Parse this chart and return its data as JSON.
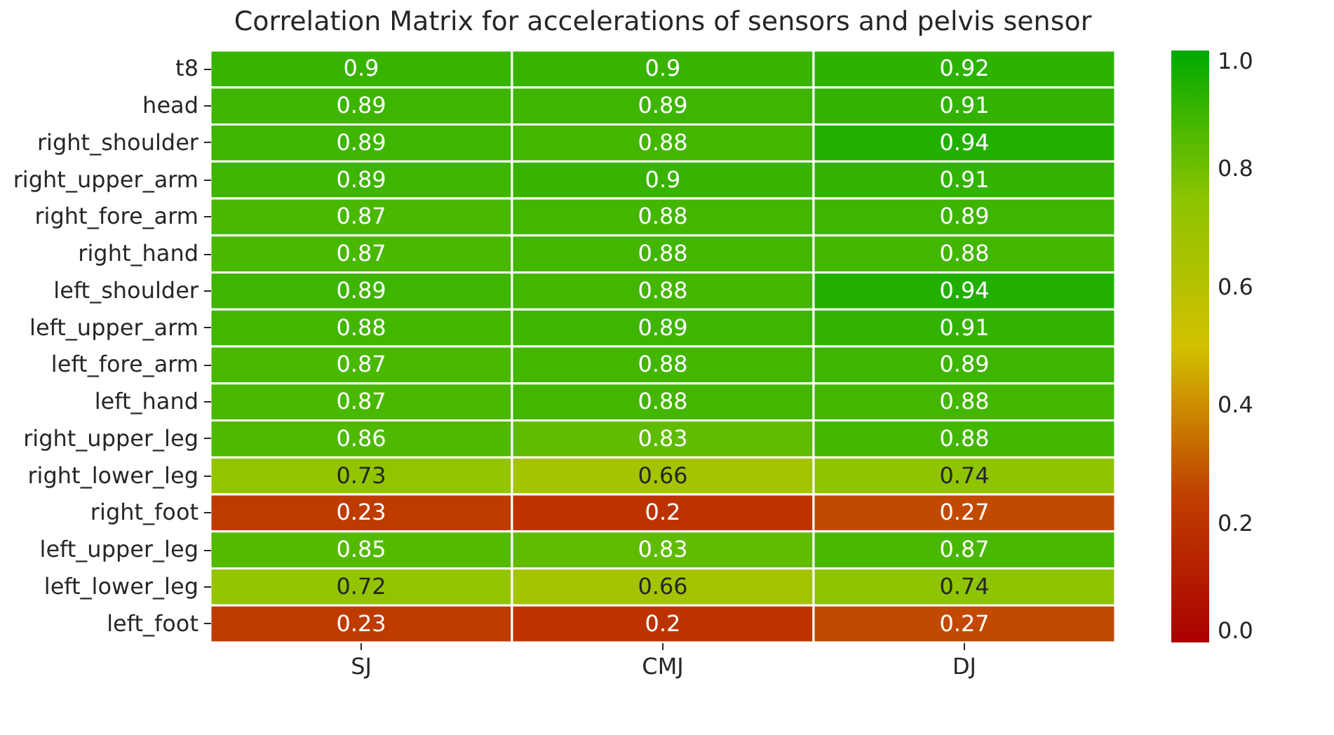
{
  "chart_data": {
    "type": "heatmap",
    "title": "Correlation Matrix for accelerations of sensors and pelvis sensor",
    "categories": [
      "SJ",
      "CMJ",
      "DJ"
    ],
    "y_categories": [
      "t8",
      "head",
      "right_shoulder",
      "right_upper_arm",
      "right_fore_arm",
      "right_hand",
      "left_shoulder",
      "left_upper_arm",
      "left_fore_arm",
      "left_hand",
      "right_upper_leg",
      "right_lower_leg",
      "right_foot",
      "left_upper_leg",
      "left_lower_leg",
      "left_foot"
    ],
    "cells": [
      [
        0.9,
        0.9,
        0.92
      ],
      [
        0.89,
        0.89,
        0.91
      ],
      [
        0.89,
        0.88,
        0.94
      ],
      [
        0.89,
        0.9,
        0.91
      ],
      [
        0.87,
        0.88,
        0.89
      ],
      [
        0.87,
        0.88,
        0.88
      ],
      [
        0.89,
        0.88,
        0.94
      ],
      [
        0.88,
        0.89,
        0.91
      ],
      [
        0.87,
        0.88,
        0.89
      ],
      [
        0.87,
        0.88,
        0.88
      ],
      [
        0.86,
        0.83,
        0.88
      ],
      [
        0.73,
        0.66,
        0.74
      ],
      [
        0.23,
        0.2,
        0.27
      ],
      [
        0.85,
        0.83,
        0.87
      ],
      [
        0.72,
        0.66,
        0.74
      ],
      [
        0.23,
        0.2,
        0.27
      ]
    ],
    "data_labels": true,
    "clim": [
      0,
      1
    ],
    "cticks": [
      {
        "value": 0,
        "label": "0.0"
      },
      {
        "value": 0.2,
        "label": "0.2"
      },
      {
        "value": 0.4,
        "label": "0.4"
      },
      {
        "value": 0.6,
        "label": "0.6"
      },
      {
        "value": 0.8,
        "label": "0.8"
      },
      {
        "value": 1,
        "label": "1.0"
      }
    ]
  }
}
